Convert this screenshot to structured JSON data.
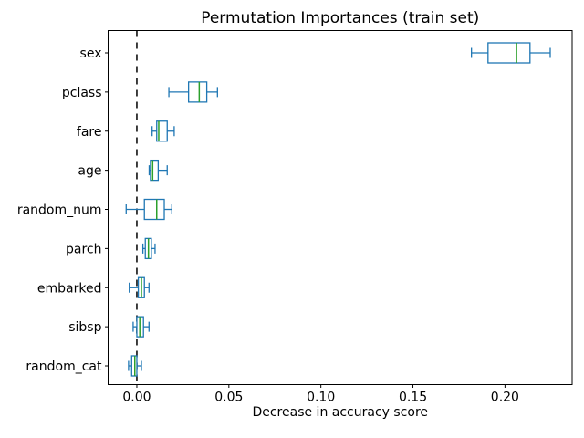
{
  "chart_data": {
    "type": "boxplot",
    "orientation": "horizontal",
    "title": "Permutation Importances (train set)",
    "xlabel": "Decrease in accuracy score",
    "ylabel": "",
    "grid": false,
    "xlim": [
      -0.0156,
      0.2365
    ],
    "xticks": [
      {
        "value": 0.0,
        "label": "0.00"
      },
      {
        "value": 0.05,
        "label": "0.05"
      },
      {
        "value": 0.1,
        "label": "0.10"
      },
      {
        "value": 0.15,
        "label": "0.15"
      },
      {
        "value": 0.2,
        "label": "0.20"
      }
    ],
    "categories_top_to_bottom": [
      "sex",
      "pclass",
      "fare",
      "age",
      "random_num",
      "parch",
      "embarked",
      "sibsp",
      "random_cat"
    ],
    "boxes": [
      {
        "label": "sex",
        "whislo": 0.1818,
        "q1": 0.1908,
        "med": 0.2063,
        "q3": 0.2136,
        "whishi": 0.2246
      },
      {
        "label": "pclass",
        "whislo": 0.0174,
        "q1": 0.0281,
        "med": 0.0339,
        "q3": 0.038,
        "whishi": 0.0438
      },
      {
        "label": "fare",
        "whislo": 0.0083,
        "q1": 0.0108,
        "med": 0.0119,
        "q3": 0.0165,
        "whishi": 0.0203
      },
      {
        "label": "age",
        "whislo": 0.0067,
        "q1": 0.0074,
        "med": 0.0086,
        "q3": 0.0116,
        "whishi": 0.0165
      },
      {
        "label": "random_num",
        "whislo": -0.0058,
        "q1": 0.0041,
        "med": 0.0108,
        "q3": 0.0149,
        "whishi": 0.019
      },
      {
        "label": "parch",
        "whislo": 0.0033,
        "q1": 0.0046,
        "med": 0.0063,
        "q3": 0.0079,
        "whishi": 0.0099
      },
      {
        "label": "embarked",
        "whislo": -0.0041,
        "q1": 0.0008,
        "med": 0.0025,
        "q3": 0.0041,
        "whishi": 0.0066
      },
      {
        "label": "sibsp",
        "whislo": -0.002,
        "q1": 0.0,
        "med": 0.0016,
        "q3": 0.0036,
        "whishi": 0.0066
      },
      {
        "label": "random_cat",
        "whislo": -0.0045,
        "q1": -0.0028,
        "med": -0.0011,
        "q3": 0.0,
        "whishi": 0.0025
      }
    ],
    "refline": {
      "x": 0.0,
      "style": "dashed",
      "color": "#000000"
    },
    "colors": {
      "box": "#1f77b4",
      "whisker": "#1f77b4",
      "cap": "#1f77b4",
      "median": "#2ca02c",
      "axes": "#000000",
      "background": "#ffffff"
    },
    "legend": null
  }
}
